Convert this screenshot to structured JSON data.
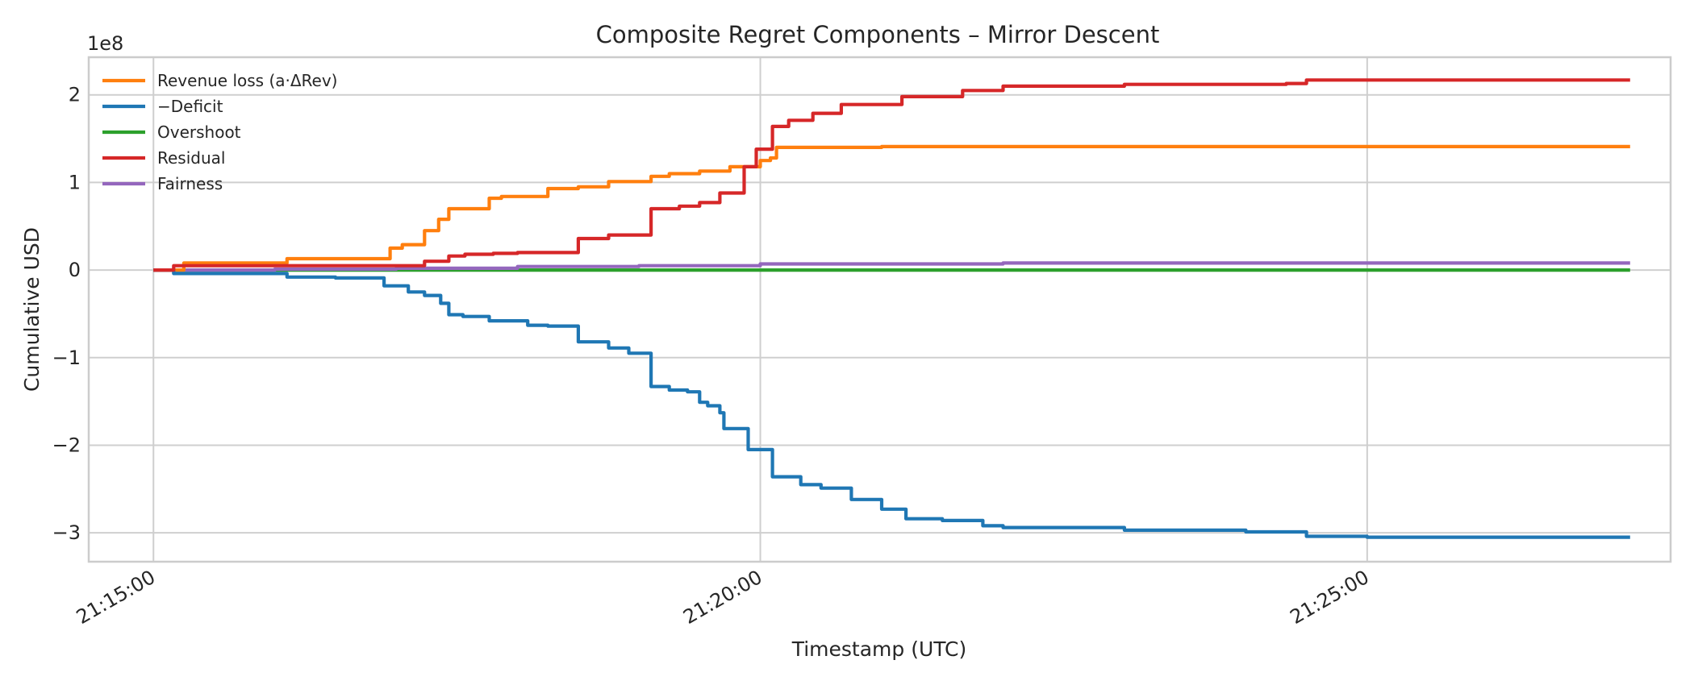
{
  "chart_data": {
    "type": "line",
    "title": "Composite Regret Components – Mirror Descent",
    "xlabel": "Timestamp (UTC)",
    "ylabel": "Cumulative USD",
    "y_offset_text": "1e8",
    "x_ticks": [
      "21:15:00",
      "21:20:00",
      "21:25:00"
    ],
    "y_ticks": [
      "−3",
      "−2",
      "−1",
      "0",
      "1",
      "2"
    ],
    "y_tick_values": [
      -3,
      -2,
      -1,
      0,
      1,
      2
    ],
    "xlim": [
      "21:14:28",
      "21:27:30"
    ],
    "ylim": [
      -3.33,
      2.43
    ],
    "y_scale_note": "values in units of 1e8 USD",
    "grid": true,
    "legend_position": "upper left",
    "series": [
      {
        "name": "Revenue loss (a·ΔRev)",
        "color": "#ff7f0e",
        "x": [
          "21:15:00",
          "21:15:15",
          "21:15:40",
          "21:16:04",
          "21:16:06",
          "21:16:30",
          "21:16:54",
          "21:16:57",
          "21:17:03",
          "21:17:06",
          "21:17:14",
          "21:17:21",
          "21:17:26",
          "21:17:46",
          "21:17:52",
          "21:18:15",
          "21:18:30",
          "21:18:45",
          "21:19:06",
          "21:19:15",
          "21:19:30",
          "21:19:45",
          "21:20:00",
          "21:20:05",
          "21:20:08",
          "21:21:00",
          "21:23:00",
          "21:25:00",
          "21:27:00",
          "21:27:10"
        ],
        "y": [
          0,
          0.08,
          0.08,
          0.08,
          0.13,
          0.13,
          0.13,
          0.25,
          0.29,
          0.29,
          0.45,
          0.58,
          0.7,
          0.82,
          0.84,
          0.93,
          0.95,
          1.01,
          1.07,
          1.1,
          1.13,
          1.18,
          1.25,
          1.28,
          1.4,
          1.41,
          1.41,
          1.41,
          1.41,
          1.41
        ]
      },
      {
        "name": "−Deficit",
        "color": "#1f77b4",
        "x": [
          "21:15:00",
          "21:15:10",
          "21:16:06",
          "21:16:30",
          "21:16:54",
          "21:17:06",
          "21:17:14",
          "21:17:22",
          "21:17:26",
          "21:17:33",
          "21:17:46",
          "21:18:05",
          "21:18:15",
          "21:18:30",
          "21:18:45",
          "21:18:55",
          "21:19:06",
          "21:19:15",
          "21:19:24",
          "21:19:30",
          "21:19:34",
          "21:19:40",
          "21:19:42",
          "21:19:54",
          "21:20:06",
          "21:20:20",
          "21:20:30",
          "21:20:45",
          "21:21:00",
          "21:21:12",
          "21:21:30",
          "21:21:50",
          "21:22:00",
          "21:23:00",
          "21:24:00",
          "21:24:30",
          "21:25:00",
          "21:27:10"
        ],
        "y": [
          0,
          -0.04,
          -0.08,
          -0.09,
          -0.18,
          -0.25,
          -0.29,
          -0.38,
          -0.51,
          -0.53,
          -0.58,
          -0.63,
          -0.64,
          -0.82,
          -0.89,
          -0.95,
          -1.33,
          -1.37,
          -1.39,
          -1.51,
          -1.55,
          -1.63,
          -1.81,
          -2.05,
          -2.36,
          -2.45,
          -2.49,
          -2.62,
          -2.73,
          -2.84,
          -2.86,
          -2.92,
          -2.94,
          -2.97,
          -2.99,
          -3.04,
          -3.05,
          -3.05
        ]
      },
      {
        "name": "Overshoot",
        "color": "#2ca02c",
        "x": [
          "21:15:00",
          "21:17:00",
          "21:20:00",
          "21:25:00",
          "21:27:10"
        ],
        "y": [
          0,
          0,
          0,
          0,
          0
        ]
      },
      {
        "name": "Residual",
        "color": "#d62728",
        "x": [
          "21:15:00",
          "21:15:10",
          "21:16:54",
          "21:17:14",
          "21:17:26",
          "21:17:34",
          "21:17:48",
          "21:18:00",
          "21:18:30",
          "21:18:45",
          "21:19:06",
          "21:19:20",
          "21:19:30",
          "21:19:40",
          "21:19:52",
          "21:19:58",
          "21:20:06",
          "21:20:14",
          "21:20:26",
          "21:20:40",
          "21:21:10",
          "21:21:40",
          "21:22:00",
          "21:23:00",
          "21:24:00",
          "21:24:20",
          "21:24:30",
          "21:25:00",
          "21:27:10"
        ],
        "y": [
          0,
          0.05,
          0.05,
          0.1,
          0.16,
          0.18,
          0.19,
          0.2,
          0.36,
          0.4,
          0.7,
          0.73,
          0.77,
          0.88,
          1.18,
          1.38,
          1.64,
          1.71,
          1.79,
          1.89,
          1.98,
          2.05,
          2.1,
          2.12,
          2.12,
          2.13,
          2.17,
          2.17,
          2.17
        ]
      },
      {
        "name": "Fairness",
        "color": "#9467bd",
        "x": [
          "21:15:00",
          "21:16:00",
          "21:17:00",
          "21:18:00",
          "21:19:00",
          "21:20:00",
          "21:22:00",
          "21:25:00",
          "21:27:10"
        ],
        "y": [
          0,
          0.01,
          0.02,
          0.04,
          0.05,
          0.07,
          0.08,
          0.08,
          0.08
        ]
      }
    ]
  }
}
